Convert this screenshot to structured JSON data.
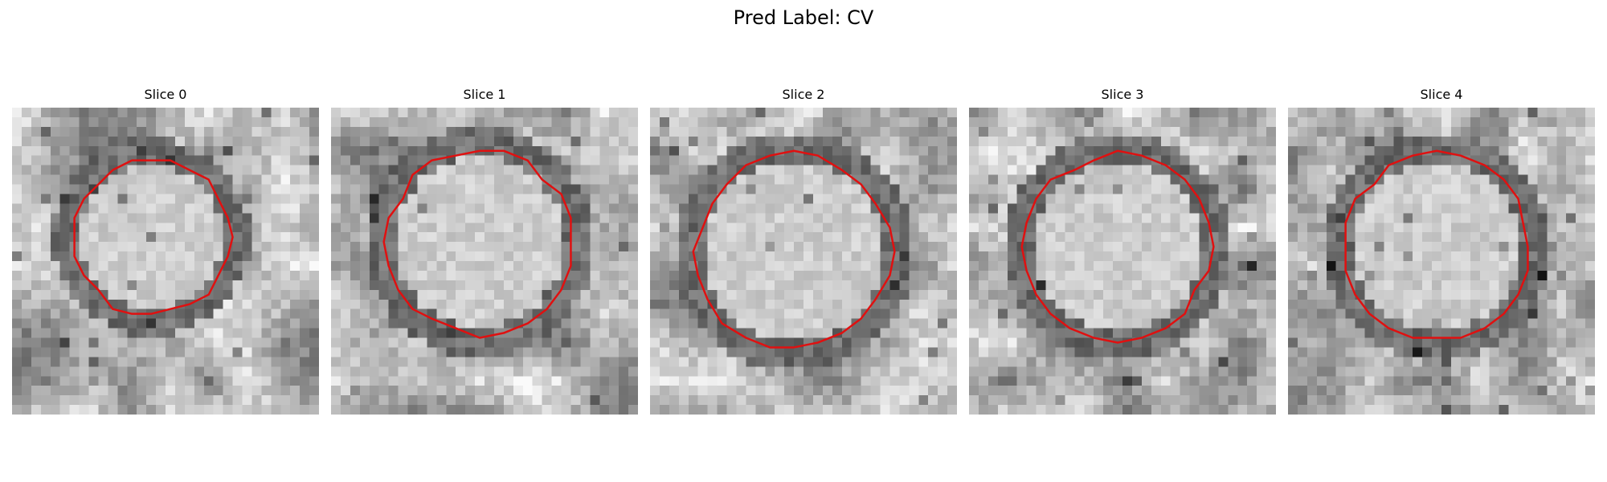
{
  "figure": {
    "title": "Pred Label: CV"
  },
  "panels": [
    {
      "title": "Slice 0",
      "seed": 11,
      "contour_color": "#e01010"
    },
    {
      "title": "Slice 1",
      "seed": 23,
      "contour_color": "#e01010"
    },
    {
      "title": "Slice 2",
      "seed": 37,
      "contour_color": "#e01010"
    },
    {
      "title": "Slice 3",
      "seed": 41,
      "contour_color": "#e01010"
    },
    {
      "title": "Slice 4",
      "seed": 53,
      "contour_color": "#e01010"
    }
  ]
}
